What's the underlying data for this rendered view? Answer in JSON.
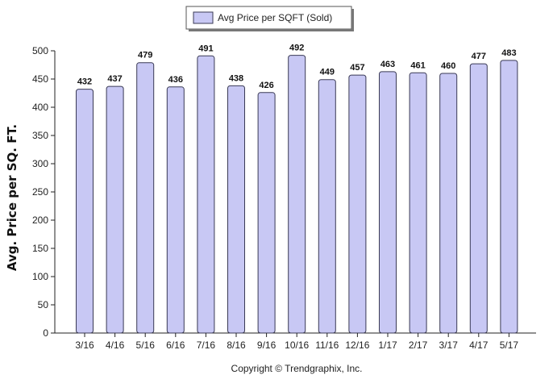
{
  "chart_data": {
    "type": "bar",
    "title": "",
    "xlabel": "",
    "ylabel": "Avg. Price per SQ. FT.",
    "categories": [
      "3/16",
      "4/16",
      "5/16",
      "6/16",
      "7/16",
      "8/16",
      "9/16",
      "10/16",
      "11/16",
      "12/16",
      "1/17",
      "2/17",
      "3/17",
      "4/17",
      "5/17"
    ],
    "series": [
      {
        "name": "Avg Price per SQFT (Sold)",
        "values": [
          432,
          437,
          479,
          436,
          491,
          438,
          426,
          492,
          449,
          457,
          463,
          461,
          460,
          477,
          483
        ]
      }
    ],
    "ylim": [
      0,
      500
    ],
    "yticks": [
      0,
      50,
      100,
      150,
      200,
      250,
      300,
      350,
      400,
      450,
      500
    ],
    "grid": false,
    "legend": "top-center",
    "bar_color": "#c8c8f4",
    "bar_edge_color": "#3a3a55",
    "data_labels": true
  },
  "footer": {
    "credit": "Copyright © Trendgraphix, Inc."
  }
}
